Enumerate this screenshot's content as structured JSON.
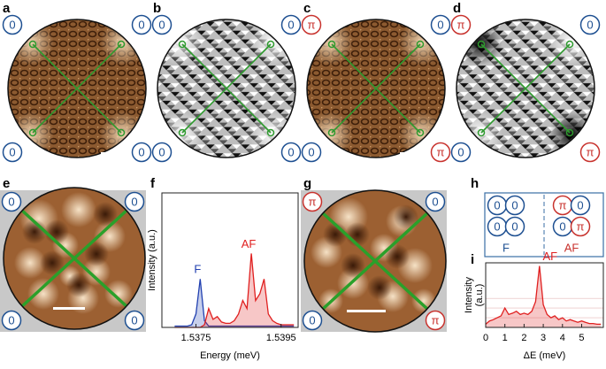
{
  "panel_labels": [
    "a",
    "b",
    "c",
    "d",
    "e",
    "f",
    "g",
    "h",
    "i"
  ],
  "images": [
    {
      "badges": [
        {
          "text": "0",
          "color": "#1d4f91"
        },
        {
          "text": "0",
          "color": "#1d4f91"
        },
        {
          "text": "0",
          "color": "#1d4f91"
        },
        {
          "text": "0",
          "color": "#1d4f91"
        }
      ]
    },
    {
      "badges": [
        {
          "text": "0",
          "color": "#1d4f91"
        },
        {
          "text": "0",
          "color": "#1d4f91"
        },
        {
          "text": "0",
          "color": "#1d4f91"
        },
        {
          "text": "0",
          "color": "#1d4f91"
        }
      ]
    },
    {
      "badges": [
        {
          "text": "π",
          "color": "#c8322d"
        },
        {
          "text": "0",
          "color": "#1d4f91"
        },
        {
          "text": "0",
          "color": "#1d4f91"
        },
        {
          "text": "π",
          "color": "#c8322d"
        }
      ]
    },
    {
      "badges": [
        {
          "text": "π",
          "color": "#c8322d"
        },
        {
          "text": "0",
          "color": "#1d4f91"
        },
        {
          "text": "0",
          "color": "#1d4f91"
        },
        {
          "text": "π",
          "color": "#c8322d"
        }
      ]
    },
    {
      "badges": [
        {
          "text": "0",
          "color": "#1d4f91"
        },
        {
          "text": "0",
          "color": "#1d4f91"
        },
        {
          "text": "0",
          "color": "#1d4f91"
        },
        {
          "text": "0",
          "color": "#1d4f91"
        }
      ]
    },
    {
      "badges": [
        {
          "text": "π",
          "color": "#c8322d"
        },
        {
          "text": "0",
          "color": "#1d4f91"
        },
        {
          "text": "0",
          "color": "#1d4f91"
        },
        {
          "text": "π",
          "color": "#c8322d"
        }
      ]
    }
  ],
  "state_diagram": {
    "left": {
      "label": "F",
      "color": "#1d4f91",
      "badges": [
        {
          "text": "0",
          "color": "#1d4f91"
        },
        {
          "text": "0",
          "color": "#1d4f91"
        },
        {
          "text": "0",
          "color": "#1d4f91"
        },
        {
          "text": "0",
          "color": "#1d4f91"
        }
      ]
    },
    "right": {
      "label": "AF",
      "color": "#c8322d",
      "badges": [
        {
          "text": "π",
          "color": "#c8322d"
        },
        {
          "text": "0",
          "color": "#1d4f91"
        },
        {
          "text": "0",
          "color": "#1d4f91"
        },
        {
          "text": "π",
          "color": "#c8322d"
        }
      ]
    }
  },
  "chart_data": [
    {
      "type": "area",
      "x_label": "Energy (meV)",
      "y_label": [
        "Intensity (a.u.)"
      ],
      "x": [
        1.537,
        1.5371,
        1.5372,
        1.5373,
        1.5374,
        1.5375,
        1.5376,
        1.5377,
        1.5378,
        1.5379,
        1.538,
        1.5381,
        1.5382,
        1.5383,
        1.5384,
        1.5385,
        1.5386,
        1.5387,
        1.5388,
        1.5389,
        1.539,
        1.5391,
        1.5392,
        1.5393,
        1.5394,
        1.5395,
        1.5396,
        1.5397,
        1.5398
      ],
      "series": [
        {
          "name": "F",
          "color": "#2140b0",
          "values": [
            0.01,
            0.01,
            0.01,
            0.01,
            0.02,
            0.1,
            0.36,
            0.05,
            0.01,
            0.01,
            0.01,
            0.01,
            0.01,
            0.01,
            0.01,
            0.01,
            0.01,
            0.01,
            0.01,
            0.01,
            0.01,
            0.01,
            0.01,
            0.01,
            0.01,
            0.01,
            0.01,
            0.01,
            0.01
          ]
        },
        {
          "name": "AF",
          "color": "#e02020",
          "values": [
            0,
            0,
            0,
            0,
            0,
            0,
            0,
            0.02,
            0.14,
            0.06,
            0.08,
            0.04,
            0.03,
            0.03,
            0.05,
            0.1,
            0.2,
            0.14,
            0.55,
            0.2,
            0.25,
            0.36,
            0.1,
            0.05,
            0.03,
            0.02,
            0.02,
            0.02,
            0.02
          ]
        }
      ],
      "xlim": [
        1.5367,
        1.5399
      ],
      "xticks": [
        1.5375,
        1.5395
      ],
      "ylim": [
        0,
        1
      ]
    },
    {
      "type": "area",
      "x_label": "ΔE (meV)",
      "y_label": [
        "Intensity",
        "(a.u.)"
      ],
      "x": [
        0,
        0.2,
        0.4,
        0.6,
        0.8,
        1.0,
        1.2,
        1.4,
        1.6,
        1.8,
        2.0,
        2.2,
        2.4,
        2.6,
        2.8,
        3.0,
        3.2,
        3.4,
        3.6,
        3.8,
        4.0,
        4.2,
        4.4,
        4.6,
        4.8,
        5.0,
        5.2,
        5.4,
        5.6,
        5.8,
        6.0
      ],
      "series": [
        {
          "name": "AF",
          "color": "#e02020",
          "values": [
            0.05,
            0.1,
            0.12,
            0.15,
            0.18,
            0.3,
            0.2,
            0.22,
            0.25,
            0.2,
            0.22,
            0.2,
            0.25,
            0.4,
            0.95,
            0.35,
            0.2,
            0.15,
            0.18,
            0.12,
            0.15,
            0.1,
            0.12,
            0.1,
            0.08,
            0.1,
            0.08,
            0.06,
            0.06,
            0.05,
            0.05
          ]
        }
      ],
      "xlim": [
        0,
        6.13
      ],
      "xticks": [
        0,
        1,
        2,
        3,
        4,
        5
      ],
      "ylim": [
        0,
        1
      ]
    }
  ]
}
